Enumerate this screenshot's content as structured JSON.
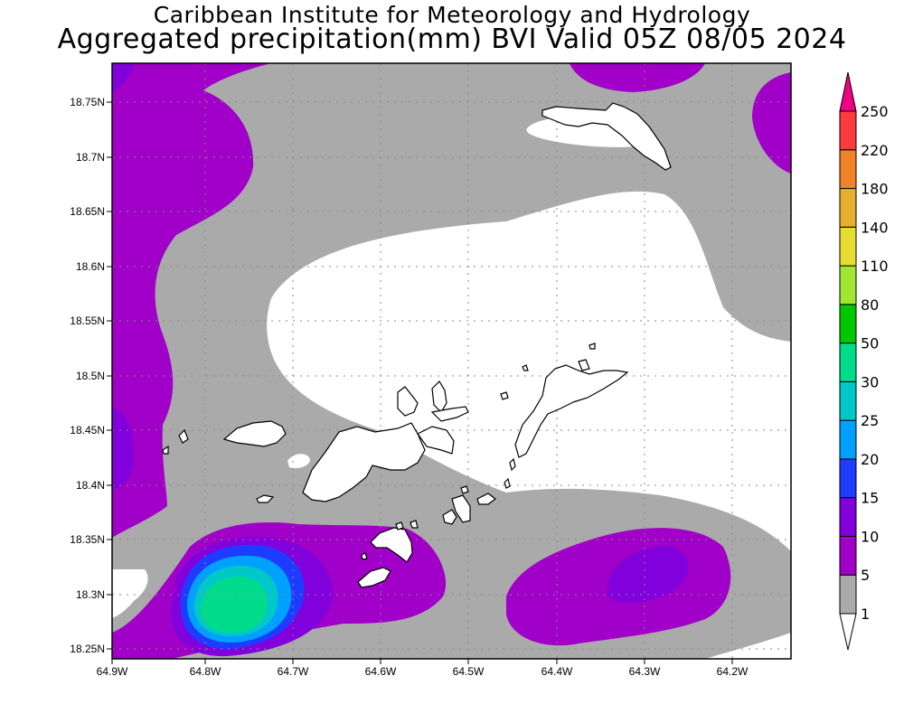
{
  "title": {
    "line1": "Caribbean Institute for Meteorology and Hydrology",
    "line2": "Aggregated precipitation(mm) BVI Valid 05Z 08/05 2024"
  },
  "axes": {
    "y_ticks": [
      "18.75N",
      "18.7N",
      "18.65N",
      "18.6N",
      "18.55N",
      "18.5N",
      "18.45N",
      "18.4N",
      "18.35N",
      "18.3N",
      "18.25N"
    ],
    "x_ticks": [
      "64.9W",
      "64.8W",
      "64.7W",
      "64.6W",
      "64.5W",
      "64.4W",
      "64.3W",
      "64.2W"
    ],
    "lat_range": [
      18.24,
      18.79
    ],
    "lon_range": [
      -64.91,
      -64.14
    ],
    "grid": "dotted"
  },
  "colorbar": {
    "levels": [
      "1",
      "5",
      "10",
      "15",
      "20",
      "25",
      "30",
      "50",
      "80",
      "110",
      "140",
      "180",
      "220",
      "250"
    ],
    "colors": [
      "#ffffff",
      "#aaaaaa",
      "#a000c8",
      "#8200dc",
      "#1e3cff",
      "#00a0ff",
      "#00c8c8",
      "#00dc8c",
      "#00c800",
      "#a0e632",
      "#e6dc32",
      "#e6af2d",
      "#f08228",
      "#fa3c3c",
      "#f00082"
    ]
  },
  "map_colors": {
    "background": "#ffffff",
    "gray": "#aaaaaa",
    "purple": "#a000c8",
    "violet": "#8200dc",
    "blue": "#1e3cff",
    "cyan": "#00a0ff",
    "teal": "#00c8c8",
    "green": "#00dc8c",
    "coast": "#000000"
  }
}
